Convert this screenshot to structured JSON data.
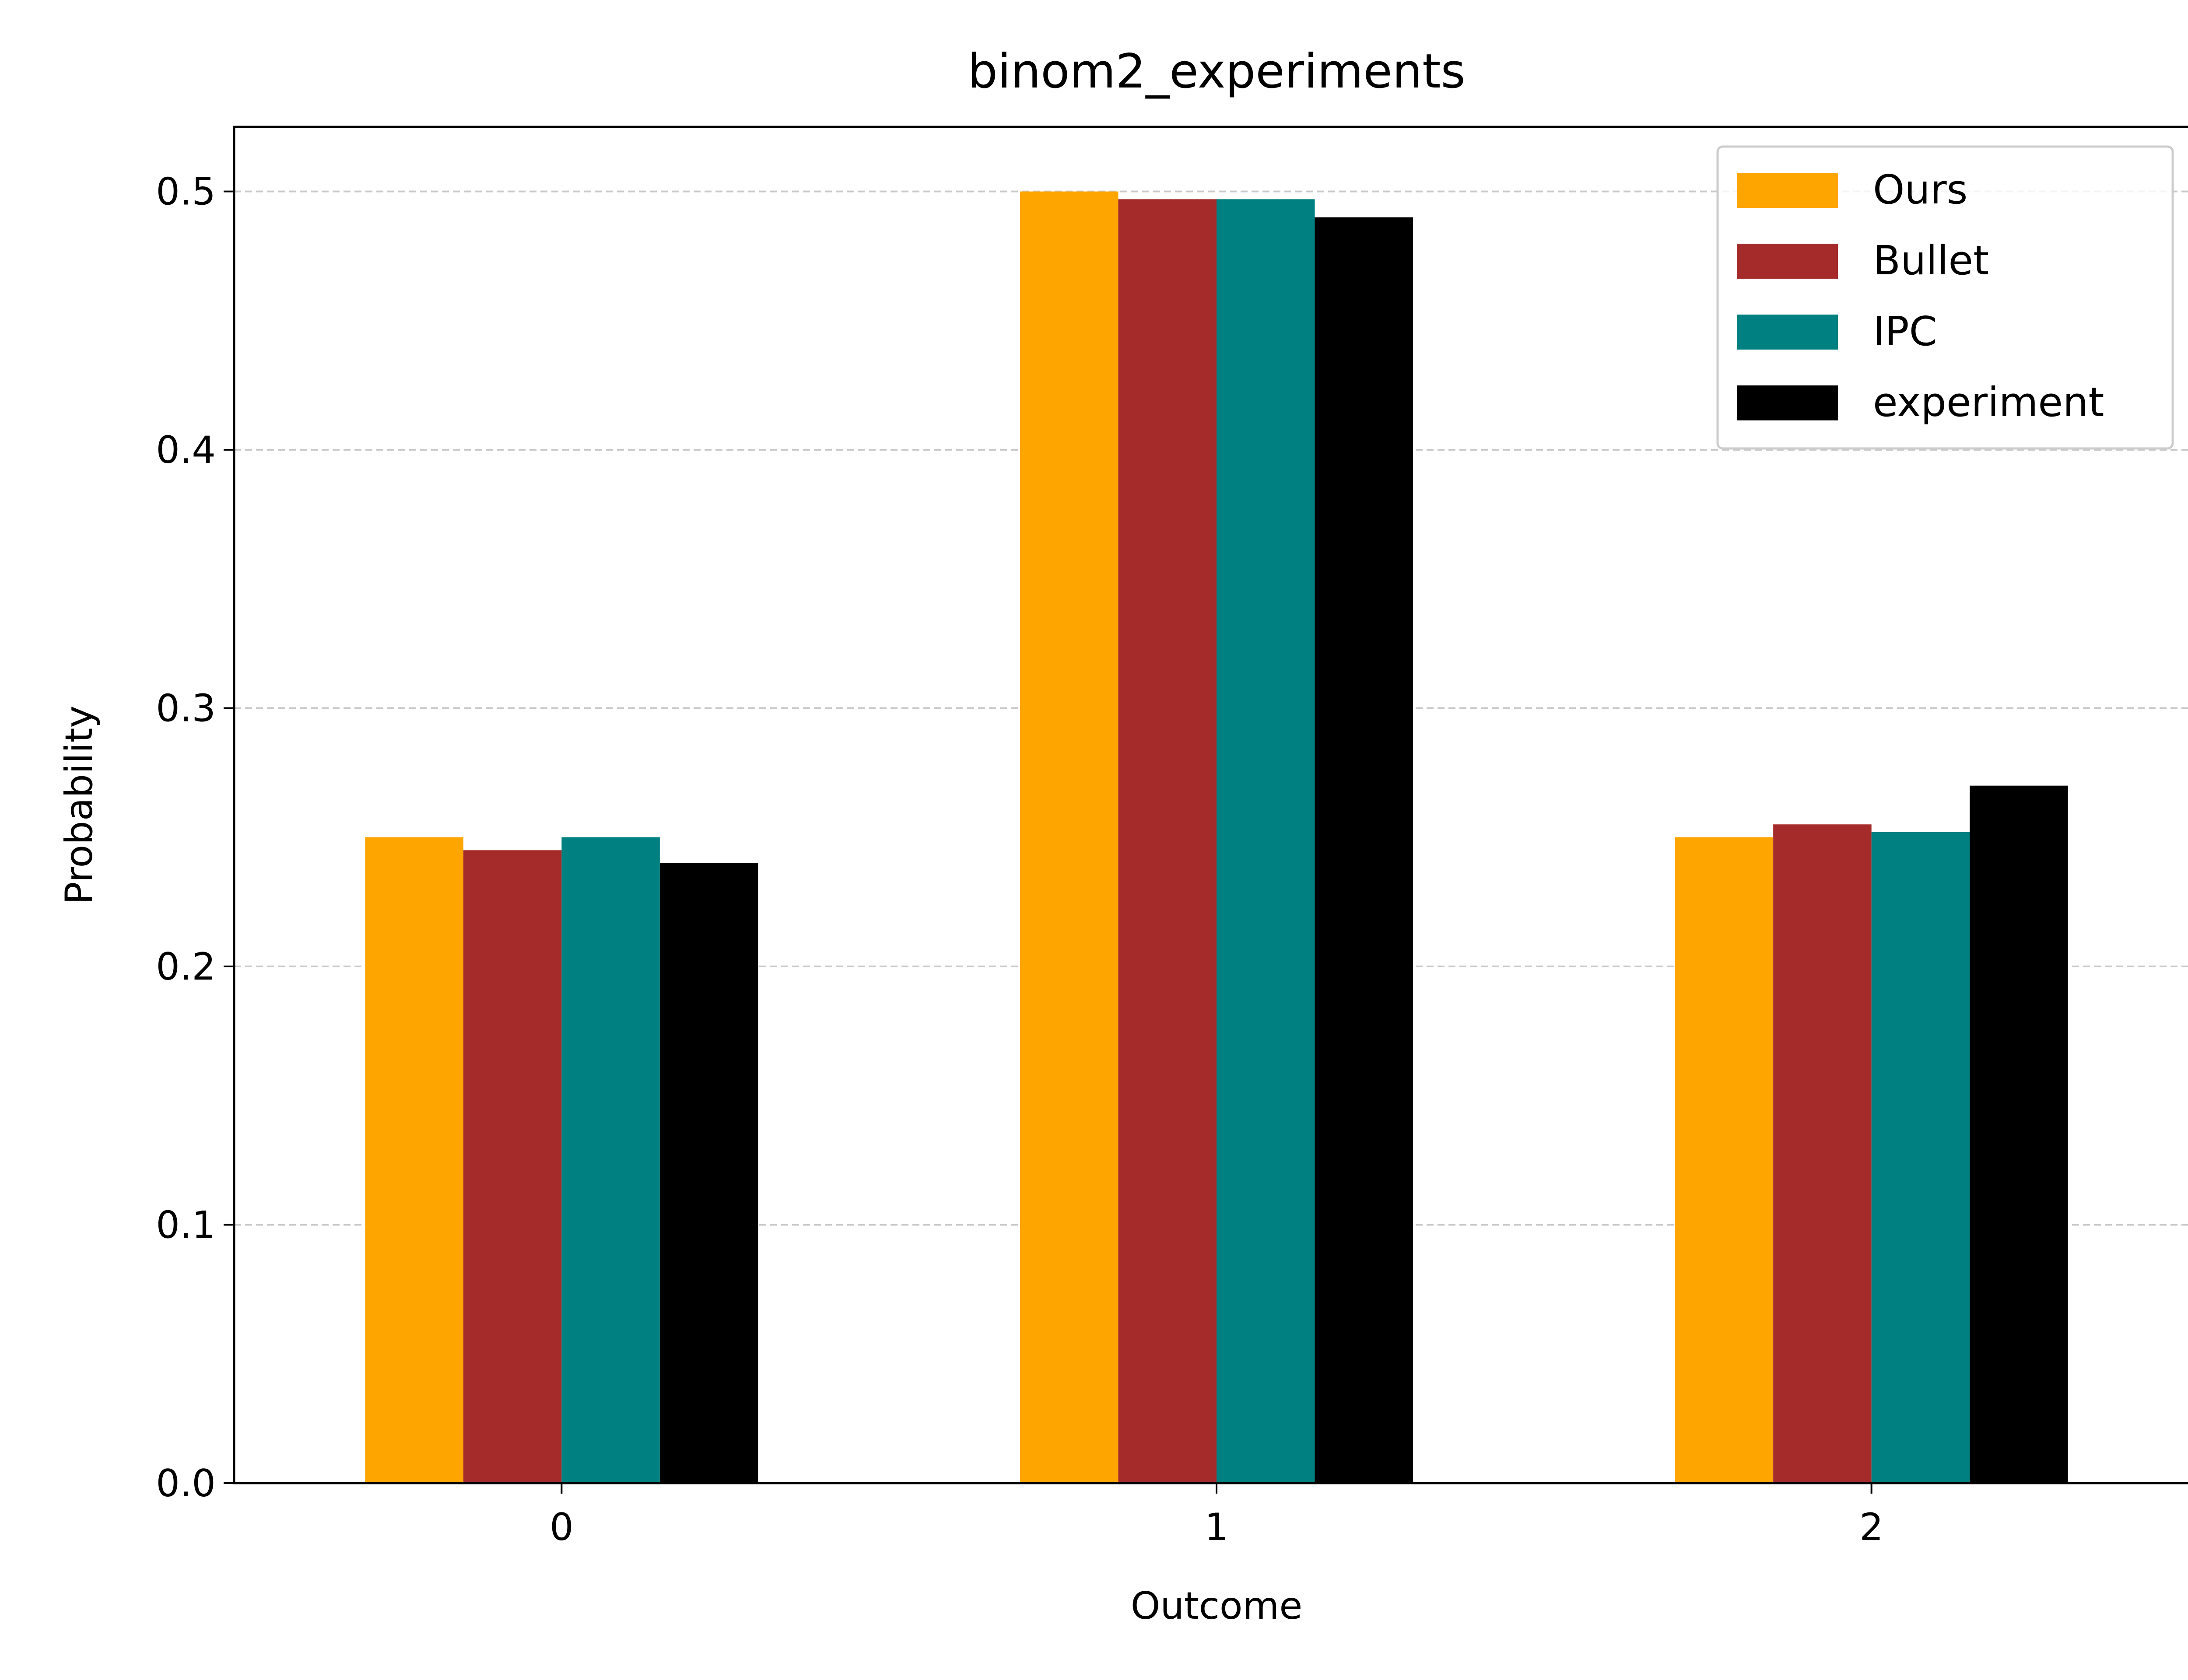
{
  "chart_data": {
    "type": "bar",
    "title": "binom2_experiments",
    "xlabel": "Outcome",
    "ylabel": "Probability",
    "categories": [
      "0",
      "1",
      "2"
    ],
    "series": [
      {
        "name": "Ours",
        "color": "#FFA500",
        "values": [
          0.25,
          0.5,
          0.25
        ]
      },
      {
        "name": "Bullet",
        "color": "#A52A2A",
        "values": [
          0.245,
          0.497,
          0.255
        ]
      },
      {
        "name": "IPC",
        "color": "#008080",
        "values": [
          0.25,
          0.497,
          0.252
        ]
      },
      {
        "name": "experiment",
        "color": "#000000",
        "values": [
          0.24,
          0.49,
          0.27
        ]
      }
    ],
    "ylim": [
      0,
      0.525
    ],
    "yticks": [
      "0.0",
      "0.1",
      "0.2",
      "0.3",
      "0.4",
      "0.5"
    ],
    "grid": "y-dashed",
    "legend_position": "top-right"
  }
}
